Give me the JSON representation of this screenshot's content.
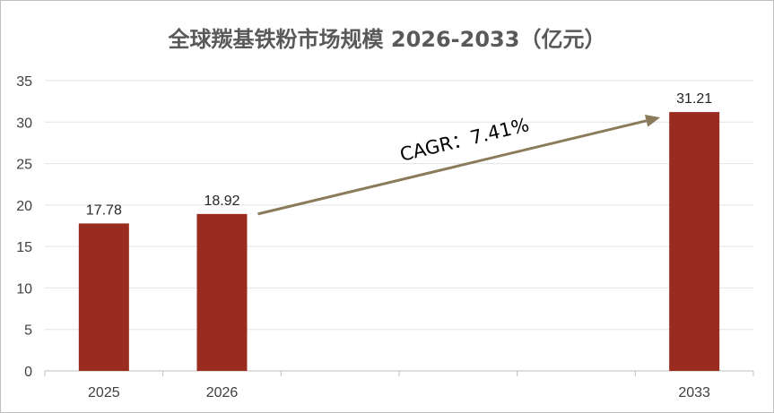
{
  "chart_data": {
    "type": "bar",
    "title": "全球羰基铁粉市场规模 2026-2033（亿元）",
    "categories": [
      "2025",
      "2026",
      "",
      "",
      "",
      "2033"
    ],
    "values": [
      17.78,
      18.92,
      null,
      null,
      null,
      31.21
    ],
    "data_labels": [
      "17.78",
      "18.92",
      "",
      "",
      "",
      "31.21"
    ],
    "ylim": [
      0,
      35
    ],
    "yticks": [
      0,
      5,
      10,
      15,
      20,
      25,
      30,
      35
    ],
    "xlabel": "",
    "ylabel": "",
    "grid": true,
    "bar_color": "#9a2b1f",
    "annotation": {
      "text": "CAGR：7.41%",
      "from_category_index": 1,
      "to_category_index": 5,
      "arrow_color": "#8b7b5a"
    }
  }
}
